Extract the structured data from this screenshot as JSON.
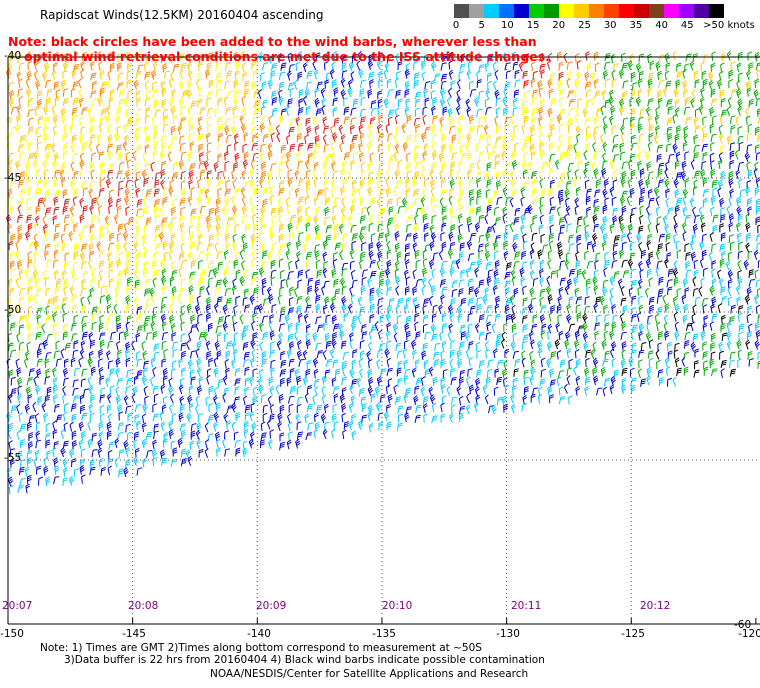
{
  "title": "Rapidscat Winds(12.5KM) 20160404 ascending",
  "note_lines": [
    "Note: black circles have been added to the wind barbs, wherever less than",
    "optimal wind retrieval conditions are met due to the ISS attitude changes."
  ],
  "legend": {
    "colors": [
      "#505050",
      "#a0a0a0",
      "#00ccff",
      "#0070ff",
      "#0000cc",
      "#00cc00",
      "#009900",
      "#ffff00",
      "#ffcc00",
      "#ff8000",
      "#ff4000",
      "#ff0000",
      "#cc0000",
      "#804020",
      "#ff00ff",
      "#a000ff",
      "#5000a0",
      "#000000"
    ],
    "labels": [
      "0",
      "5",
      "10",
      "15",
      "20",
      "25",
      "30",
      "35",
      "40",
      "45",
      ">50 knots"
    ]
  },
  "axes": {
    "lat_labels": [
      "-45",
      "-50",
      "-55",
      "-60"
    ],
    "top_lat_label": "-40",
    "lon_labels": [
      "-150",
      "-145",
      "-140",
      "-135",
      "-130",
      "-125",
      "-120"
    ],
    "time_labels": [
      "20:07",
      "20:08",
      "20:09",
      "20:10",
      "20:11",
      "20:12"
    ]
  },
  "footer": {
    "line1": "Note: 1) Times are GMT 2)Times along bottom correspond to measurement at ~50S",
    "line2": "3)Data buffer is 22 hrs from 20160404 4) Black wind barbs indicate possible contamination",
    "line3": "NOAA/NESDIS/Center for Satellite Applications and Research"
  },
  "map": {
    "lon_range": [
      -150,
      -120
    ],
    "lat_range": [
      -60,
      -40
    ],
    "grid": true,
    "barb_colors": {
      "black": "#000000",
      "cyan": "#00ccff",
      "blue": "#0000cc",
      "green": "#00aa00",
      "yellow": "#ffff00",
      "gold": "#ffcc00",
      "orange": "#ff8000",
      "red": "#ff0000",
      "darkred": "#cc2020",
      "magenta": "#cc00cc"
    }
  }
}
